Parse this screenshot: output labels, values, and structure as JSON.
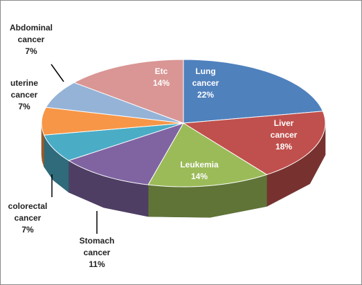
{
  "chart_data": {
    "type": "pie3d",
    "categories": [
      "Lung cancer",
      "Liver cancer",
      "Leukemia",
      "Stomach cancer",
      "colorectal cancer",
      "uterine cancer",
      "Abdominal cancer",
      "Etc"
    ],
    "values": [
      22,
      18,
      14,
      11,
      7,
      7,
      7,
      14
    ],
    "value_labels": [
      "22%",
      "18%",
      "14%",
      "11%",
      "7%",
      "7%",
      "7%",
      "14%"
    ],
    "colors": [
      "#4f81bd",
      "#c0504d",
      "#9bbb59",
      "#8064a2",
      "#4bacc6",
      "#f79646",
      "#95b3d7",
      "#d99694"
    ]
  }
}
